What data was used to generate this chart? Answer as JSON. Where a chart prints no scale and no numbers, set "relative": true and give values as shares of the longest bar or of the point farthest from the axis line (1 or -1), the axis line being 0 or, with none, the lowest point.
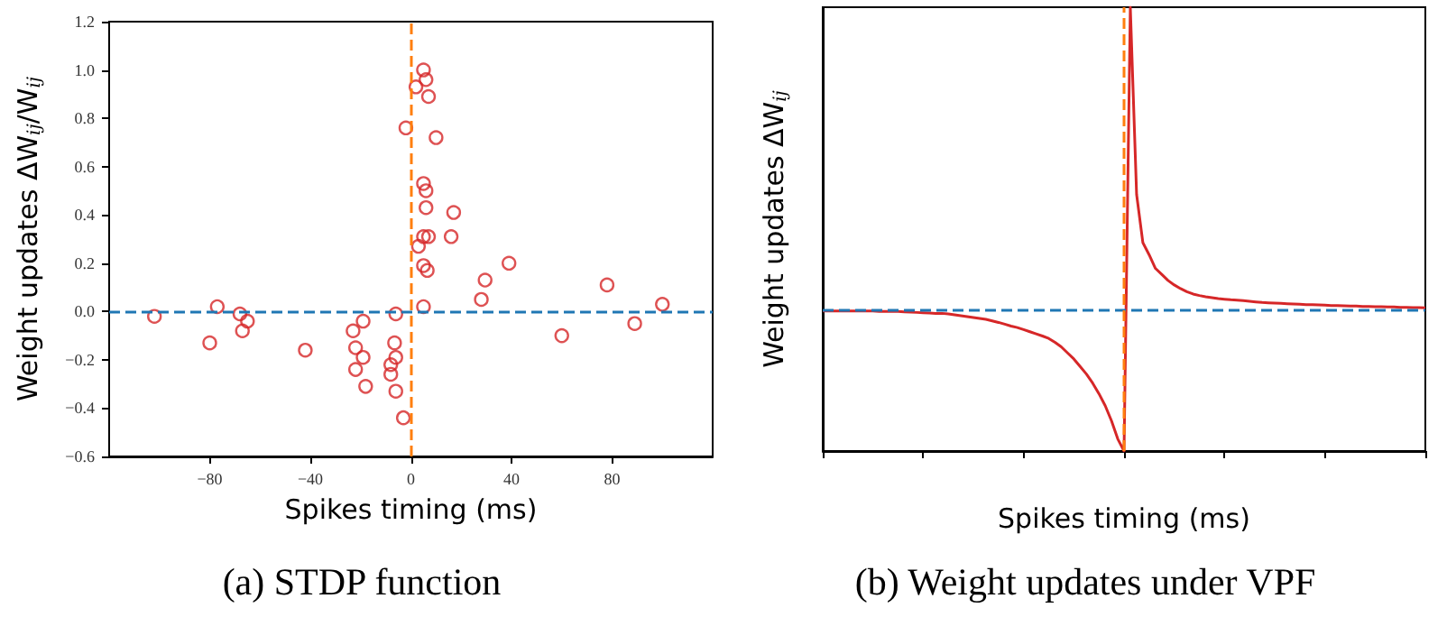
{
  "chart_data": [
    {
      "type": "scatter",
      "title": "(a) STDP function",
      "xlabel": "Spikes timing (ms)",
      "ylabel": "Weight updates ΔW$_{ij}$/W$_{ij}$",
      "xlim": [
        -120,
        120
      ],
      "xticks": [
        -80,
        -40,
        0,
        40,
        80
      ],
      "ylim": [
        -0.6,
        1.2
      ],
      "yticks": [
        -0.6,
        -0.4,
        -0.2,
        {
          "value": 0,
          "label": "0.0"
        },
        0.2,
        0.4,
        0.6,
        0.8,
        {
          "value": 1,
          "label": "1.0"
        },
        1.2
      ],
      "marker": "circle",
      "grid": false,
      "series": [
        {
          "color": "#d62728",
          "x": [
            -102,
            -77,
            -80,
            -68,
            -65,
            -67,
            -42,
            -19,
            -23,
            -22,
            -19,
            -22,
            -18,
            -6,
            -6.5,
            -6,
            -8,
            -8,
            -6,
            -3,
            -2,
            5,
            2,
            6,
            7,
            10,
            5,
            6,
            6,
            17,
            5,
            7,
            16,
            3,
            5,
            6.5,
            39,
            29.5,
            28,
            5,
            60,
            78,
            89,
            100
          ],
          "values": [
            -0.02,
            0.02,
            -0.13,
            -0.01,
            -0.04,
            -0.08,
            -0.16,
            -0.04,
            -0.08,
            -0.15,
            -0.19,
            -0.24,
            -0.31,
            -0.01,
            -0.13,
            -0.19,
            -0.22,
            -0.26,
            -0.33,
            -0.44,
            0.76,
            1.0,
            0.93,
            0.96,
            0.89,
            0.72,
            0.53,
            0.5,
            0.43,
            0.41,
            0.31,
            0.31,
            0.31,
            0.27,
            0.19,
            0.17,
            0.2,
            0.13,
            0.05,
            0.02,
            -0.1,
            0.11,
            -0.05,
            0.03
          ]
        }
      ],
      "ref_lines": [
        {
          "axis": "y",
          "value": 0,
          "color": "#1f77b4",
          "line_style": "dashed"
        },
        {
          "axis": "x",
          "value": 0,
          "color": "#ff7f0e",
          "line_style": "dashed"
        }
      ]
    },
    {
      "type": "line",
      "title": "(b) Weight updates under VPF",
      "xlabel": "Spikes timing (ms)",
      "ylabel": "Weight updates ΔW$_{ij}$",
      "relative": true,
      "marker": "none",
      "line_style": "solid",
      "grid": false,
      "categories": [
        null,
        null,
        null,
        null,
        null,
        null,
        null,
        null,
        null,
        null,
        null,
        null,
        null,
        null,
        null,
        null,
        null,
        null,
        null,
        null,
        null,
        null,
        null,
        null,
        null,
        null,
        null,
        null,
        null,
        null,
        null,
        null,
        null,
        null,
        null,
        null,
        null,
        null,
        null,
        null,
        null,
        null,
        null,
        null,
        null,
        null,
        null,
        null,
        null,
        null,
        null,
        null,
        null,
        null,
        null,
        null,
        null,
        null,
        null,
        null,
        null,
        null,
        null,
        null,
        null,
        null,
        null,
        null,
        null,
        null,
        null,
        null,
        null,
        null,
        null,
        null,
        null,
        null,
        null,
        null,
        null,
        null,
        null,
        null,
        null,
        null,
        null,
        null,
        null,
        null,
        null,
        null,
        null,
        null,
        null,
        null,
        null
      ],
      "series": [
        {
          "color": "#d62728",
          "values": [
            -0.006,
            -0.006,
            -0.006,
            -0.006,
            -0.006,
            -0.006,
            -0.006,
            -0.006,
            -0.006,
            -0.008,
            -0.008,
            -0.008,
            -0.008,
            -0.009,
            -0.01,
            -0.011,
            -0.012,
            -0.013,
            -0.014,
            -0.014,
            -0.016,
            -0.019,
            -0.022,
            -0.025,
            -0.028,
            -0.031,
            -0.034,
            -0.039,
            -0.044,
            -0.05,
            -0.056,
            -0.061,
            -0.068,
            -0.075,
            -0.082,
            -0.089,
            -0.097,
            -0.11,
            -0.125,
            -0.145,
            -0.165,
            -0.19,
            -0.215,
            -0.245,
            -0.28,
            -0.32,
            -0.37,
            -0.43,
            -0.47,
            1.0,
            0.38,
            0.22,
            0.18,
            0.135,
            0.115,
            0.095,
            0.08,
            0.068,
            0.058,
            0.05,
            0.045,
            0.041,
            0.038,
            0.035,
            0.033,
            0.031,
            0.03,
            0.028,
            0.026,
            0.024,
            0.022,
            0.021,
            0.02,
            0.019,
            0.018,
            0.017,
            0.016,
            0.015,
            0.015,
            0.014,
            0.013,
            0.012,
            0.012,
            0.011,
            0.01,
            0.01,
            0.009,
            0.009,
            0.008,
            0.008,
            0.007,
            0.007,
            0.006,
            0.006,
            0.005,
            0.005,
            0.004
          ]
        }
      ],
      "ref_lines": [
        {
          "axis": "y",
          "value": 0,
          "color": "#1f77b4",
          "line_style": "dashed"
        },
        {
          "axis": "x",
          "color": "#ff7f0e",
          "line_style": "dashed"
        }
      ]
    }
  ]
}
